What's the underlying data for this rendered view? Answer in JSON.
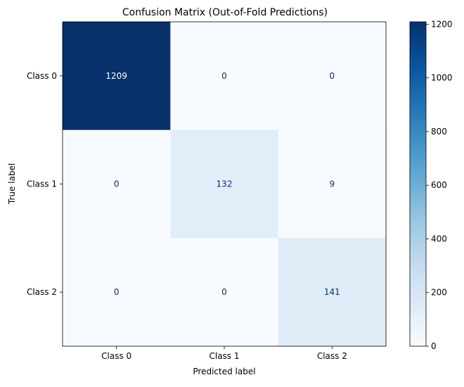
{
  "chart_data": {
    "type": "heatmap",
    "title": "Confusion Matrix (Out-of-Fold Predictions)",
    "xlabel": "Predicted label",
    "ylabel": "True label",
    "x_categories": [
      "Class 0",
      "Class 1",
      "Class 2"
    ],
    "y_categories": [
      "Class 0",
      "Class 1",
      "Class 2"
    ],
    "values": [
      [
        1209,
        0,
        0
      ],
      [
        0,
        132,
        9
      ],
      [
        0,
        0,
        141
      ]
    ],
    "value_labels": [
      [
        "1209",
        "0",
        "0"
      ],
      [
        "0",
        "132",
        "9"
      ],
      [
        "0",
        "0",
        "141"
      ]
    ],
    "colormap": "Blues",
    "color_low": "#f7fbff",
    "color_high": "#08306b",
    "colorbar": {
      "range": [
        0,
        1209
      ],
      "ticks": [
        0,
        200,
        400,
        600,
        800,
        1000,
        1200
      ],
      "tick_labels": [
        "0",
        "200",
        "400",
        "600",
        "800",
        "1000",
        "1200"
      ]
    },
    "text_colors": {
      "dark_cell": "#ffffff",
      "light_cell": "#08306b"
    },
    "grid": false
  }
}
